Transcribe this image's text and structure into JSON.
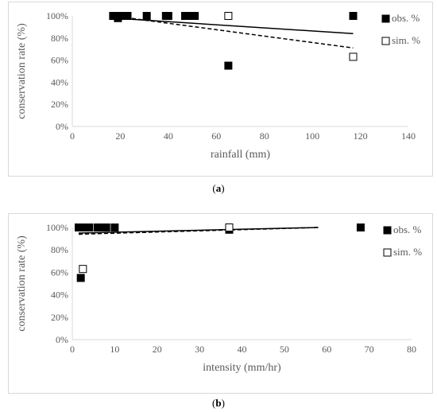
{
  "chart_data": [
    {
      "type": "scatter",
      "title": "",
      "xlabel": "rainfall (mm)",
      "ylabel": "conservation rate (%)",
      "xlim": [
        0,
        140
      ],
      "ylim": [
        0,
        100
      ],
      "x_ticks": [
        "0",
        "20",
        "40",
        "60",
        "80",
        "100",
        "120",
        "140"
      ],
      "y_ticks": [
        "0%",
        "20%",
        "40%",
        "60%",
        "80%",
        "100%"
      ],
      "grid": false,
      "legend_position": "right",
      "series": [
        {
          "name": "obs. %",
          "marker": "filled-square",
          "points": [
            [
              17,
              100
            ],
            [
              19,
              98
            ],
            [
              20,
              100
            ],
            [
              22,
              100
            ],
            [
              23,
              100
            ],
            [
              31,
              100
            ],
            [
              39,
              100
            ],
            [
              40,
              100
            ],
            [
              47,
              100
            ],
            [
              49,
              100
            ],
            [
              51,
              100
            ],
            [
              65,
              55
            ],
            [
              117,
              100
            ]
          ]
        },
        {
          "name": "sim. %",
          "marker": "open-square",
          "points": [
            [
              65,
              100
            ],
            [
              117,
              63
            ]
          ]
        }
      ],
      "trendlines": [
        {
          "series": "obs. %",
          "style": "solid",
          "points": [
            [
              17,
              98
            ],
            [
              117,
              84
            ]
          ]
        },
        {
          "series": "sim. %",
          "style": "dashed",
          "points": [
            [
              17,
              100
            ],
            [
              117,
              71
            ]
          ]
        }
      ],
      "caption": "a"
    },
    {
      "type": "scatter",
      "title": "",
      "xlabel": "intensity (mm/hr)",
      "ylabel": "conservation rate (%)",
      "xlim": [
        0,
        80
      ],
      "ylim": [
        0,
        100
      ],
      "x_ticks": [
        "0",
        "10",
        "20",
        "30",
        "40",
        "50",
        "60",
        "70",
        "80"
      ],
      "y_ticks": [
        "0%",
        "20%",
        "40%",
        "60%",
        "80%",
        "100%"
      ],
      "grid": false,
      "legend_position": "right",
      "series": [
        {
          "name": "obs. %",
          "marker": "filled-square",
          "points": [
            [
              1.5,
              100
            ],
            [
              2,
              55
            ],
            [
              3,
              100
            ],
            [
              4,
              100
            ],
            [
              6,
              100
            ],
            [
              7,
              100
            ],
            [
              8,
              100
            ],
            [
              10,
              100
            ],
            [
              37,
              98
            ],
            [
              68,
              100
            ]
          ]
        },
        {
          "name": "sim. %",
          "marker": "open-square",
          "points": [
            [
              2.5,
              63
            ],
            [
              37,
              100
            ]
          ]
        }
      ],
      "trendlines": [
        {
          "series": "obs. %",
          "style": "solid",
          "points": [
            [
              1.5,
              95
            ],
            [
              58,
              100
            ]
          ]
        },
        {
          "series": "sim. %",
          "style": "dashed",
          "points": [
            [
              1.5,
              94
            ],
            [
              58,
              100
            ]
          ]
        }
      ],
      "caption": "b"
    }
  ]
}
